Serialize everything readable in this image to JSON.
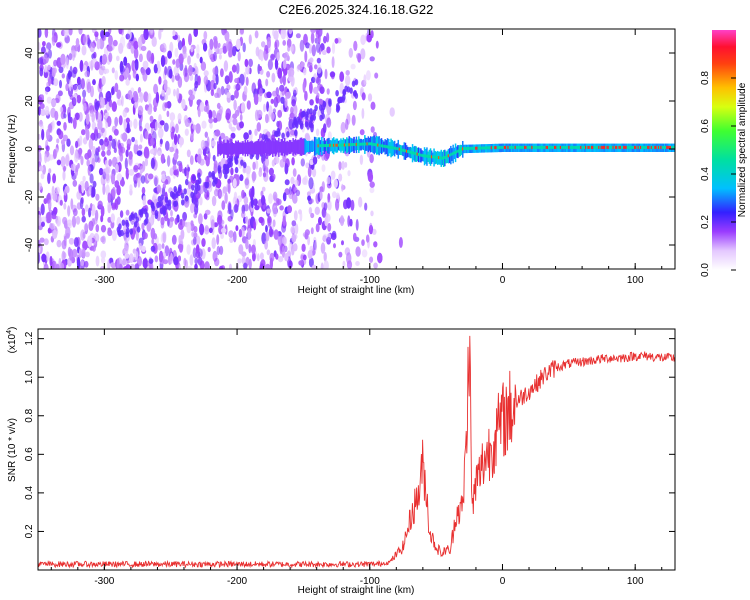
{
  "title": "C2E6.2025.324.16.18.G22",
  "colors": {
    "snr_line": "#e83030",
    "spectrum_noise": "#7a2cf0",
    "spectrum_core": "#e8323a"
  },
  "chart_data": [
    {
      "type": "heatmap",
      "name": "spectrogram",
      "xlabel": "Height of straight line (km)",
      "ylabel": "Frequency (Hz)",
      "xlim": [
        -350,
        130
      ],
      "ylim": [
        -50,
        50
      ],
      "xticks": [
        -300,
        -200,
        -100,
        0,
        100
      ],
      "yticks": [
        -40,
        -20,
        0,
        20,
        40
      ],
      "noise_extent_km": [
        -350,
        -95
      ],
      "signal_track": {
        "x": [
          -215,
          -150,
          -120,
          -100,
          -80,
          -60,
          -45,
          -30,
          0,
          50,
          100,
          130
        ],
        "y": [
          0,
          1,
          1.5,
          2,
          0,
          -3,
          -4,
          0,
          0.5,
          0.5,
          0.5,
          0.5
        ]
      },
      "colorbar": {
        "label": "Normalized spectral amplitude",
        "min": 0,
        "max": 1,
        "ticks": [
          "0.0",
          "0.2",
          "0.4",
          "0.6",
          "0.8"
        ]
      }
    },
    {
      "type": "line",
      "name": "snr",
      "xlabel": "Height of straight line (km)",
      "ylabel": "SNR (10 * v/v)",
      "scale_label": "(x10",
      "scale_exp": "4",
      "scale_close": ")",
      "xlim": [
        -350,
        130
      ],
      "ylim": [
        0,
        1.25
      ],
      "xticks": [
        -300,
        -200,
        -100,
        0,
        100
      ],
      "yticks": [
        "0.2",
        "0.4",
        "0.6",
        "0.8",
        "1.0",
        "1.2"
      ],
      "series": [
        {
          "name": "SNR",
          "x": [
            -350,
            -300,
            -200,
            -150,
            -110,
            -95,
            -85,
            -75,
            -68,
            -63,
            -60,
            -57,
            -55,
            -50,
            -45,
            -42,
            -40,
            -37,
            -35,
            -30,
            -27,
            -25,
            -23,
            -20,
            -17,
            -15,
            -12,
            -10,
            -5,
            0,
            5,
            10,
            15,
            20,
            25,
            30,
            35,
            40,
            50,
            60,
            70,
            80,
            90,
            100,
            110,
            120,
            130
          ],
          "y": [
            0.03,
            0.03,
            0.03,
            0.03,
            0.03,
            0.03,
            0.04,
            0.12,
            0.3,
            0.4,
            0.55,
            0.38,
            0.2,
            0.12,
            0.08,
            0.12,
            0.08,
            0.2,
            0.3,
            0.32,
            0.7,
            1.25,
            0.3,
            0.45,
            0.5,
            0.55,
            0.6,
            0.62,
            0.7,
            0.77,
            0.82,
            0.87,
            0.9,
            0.93,
            0.96,
            1.0,
            1.03,
            1.05,
            1.07,
            1.08,
            1.09,
            1.1,
            1.1,
            1.11,
            1.11,
            1.1,
            1.1
          ]
        }
      ]
    }
  ]
}
